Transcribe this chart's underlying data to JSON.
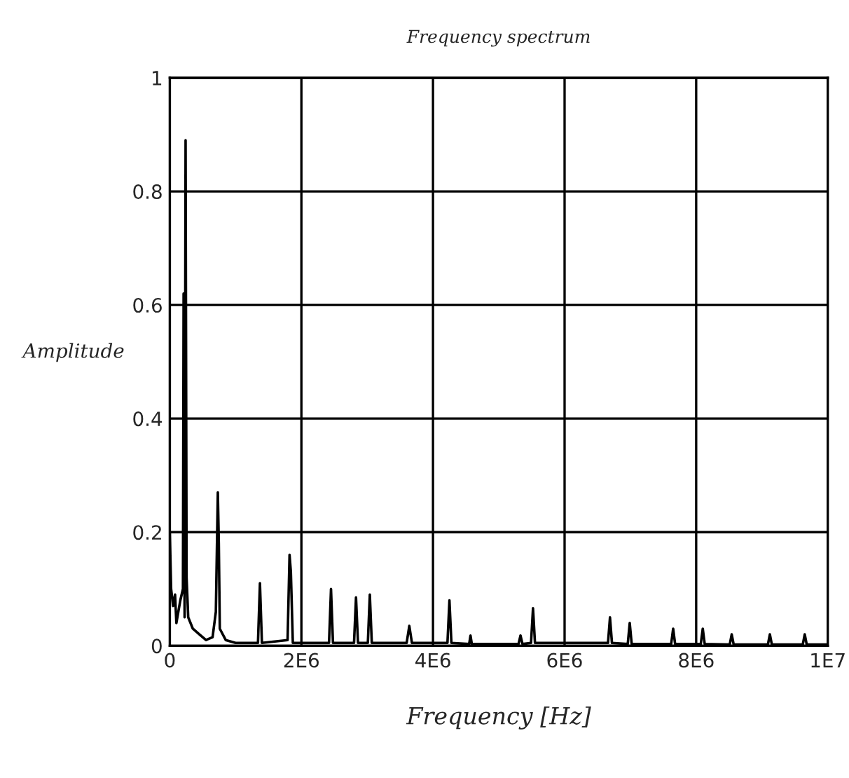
{
  "chart_data": {
    "type": "line",
    "title": "Frequency spectrum",
    "xlabel": "Frequency [Hz]",
    "ylabel": "Amplitude",
    "series": [
      {
        "color": "#000000",
        "x": [
          0,
          20000,
          50000,
          80000,
          100000,
          130000,
          160000,
          200000,
          210000,
          225000,
          240000,
          255000,
          280000,
          350000,
          450000,
          550000,
          650000,
          700000,
          730000,
          745000,
          760000,
          850000,
          1000000,
          1340000,
          1370000,
          1400000,
          1790000,
          1820000,
          1840000,
          1870000,
          2420000,
          2450000,
          2480000,
          2800000,
          2830000,
          2860000,
          3010000,
          3040000,
          3070000,
          3600000,
          3640000,
          3680000,
          4220000,
          4250000,
          4280000,
          4550000,
          4570000,
          4590000,
          5300000,
          5330000,
          5360000,
          5490000,
          5520000,
          5550000,
          6660000,
          6690000,
          6720000,
          6960000,
          6990000,
          7020000,
          7620000,
          7650000,
          7680000,
          8070000,
          8100000,
          8130000,
          8510000,
          8540000,
          8570000,
          9090000,
          9120000,
          9150000,
          9620000,
          9650000,
          9680000,
          10000000
        ],
        "values": [
          0.2,
          0.1,
          0.07,
          0.09,
          0.04,
          0.06,
          0.08,
          0.1,
          0.62,
          0.05,
          0.89,
          0.12,
          0.05,
          0.03,
          0.02,
          0.01,
          0.015,
          0.06,
          0.27,
          0.18,
          0.03,
          0.01,
          0.005,
          0.005,
          0.11,
          0.005,
          0.01,
          0.16,
          0.13,
          0.005,
          0.005,
          0.1,
          0.005,
          0.005,
          0.085,
          0.005,
          0.005,
          0.09,
          0.005,
          0.005,
          0.035,
          0.005,
          0.005,
          0.08,
          0.005,
          0.003,
          0.018,
          0.003,
          0.003,
          0.018,
          0.003,
          0.005,
          0.066,
          0.005,
          0.005,
          0.05,
          0.005,
          0.003,
          0.04,
          0.003,
          0.003,
          0.03,
          0.003,
          0.003,
          0.03,
          0.003,
          0.002,
          0.02,
          0.002,
          0.002,
          0.02,
          0.002,
          0.002,
          0.02,
          0.002,
          0.002
        ]
      }
    ],
    "xlim": [
      0,
      10000000
    ],
    "xticks": [
      0,
      {
        "value": 2000000,
        "label": "2E6"
      },
      {
        "value": 4000000,
        "label": "4E6"
      },
      {
        "value": 6000000,
        "label": "6E6"
      },
      {
        "value": 8000000,
        "label": "8E6"
      },
      {
        "value": 10000000,
        "label": "1E7"
      }
    ],
    "ylim": [
      0,
      1
    ],
    "yticks": [
      0,
      0.2,
      0.4,
      0.6,
      0.8,
      1
    ],
    "grid": true,
    "legend": false,
    "marker": "none",
    "line_style": "solid"
  }
}
